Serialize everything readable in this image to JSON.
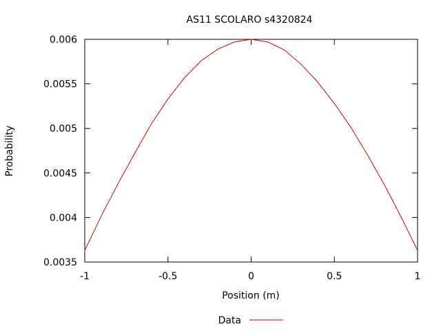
{
  "chart_data": {
    "type": "line",
    "title": "AS11 SCOLARO s4320824",
    "xlabel": "Position (m)",
    "ylabel": "Probability",
    "xlim": [
      -1,
      1
    ],
    "ylim": [
      0.0035,
      0.006
    ],
    "xticks": [
      "-1",
      "-0.5",
      "0",
      "0.5",
      "1"
    ],
    "yticks": [
      "0.0035",
      "0.004",
      "0.0045",
      "0.005",
      "0.0055",
      "0.006"
    ],
    "grid": false,
    "legend": "bottom-center",
    "series": [
      {
        "name": "Data",
        "color": "#cc0000",
        "x": [
          -1.0,
          -0.9,
          -0.8,
          -0.7,
          -0.6,
          -0.5,
          -0.4,
          -0.3,
          -0.2,
          -0.1,
          0.0,
          0.1,
          0.2,
          0.3,
          0.4,
          0.5,
          0.6,
          0.7,
          0.8,
          0.9,
          1.0
        ],
        "y": [
          0.00363,
          0.00402,
          0.00438,
          0.00472,
          0.00505,
          0.00533,
          0.00557,
          0.00576,
          0.00589,
          0.00597,
          0.006,
          0.00597,
          0.00588,
          0.00572,
          0.00552,
          0.00528,
          0.00501,
          0.0047,
          0.00437,
          0.00401,
          0.00363
        ]
      }
    ]
  }
}
